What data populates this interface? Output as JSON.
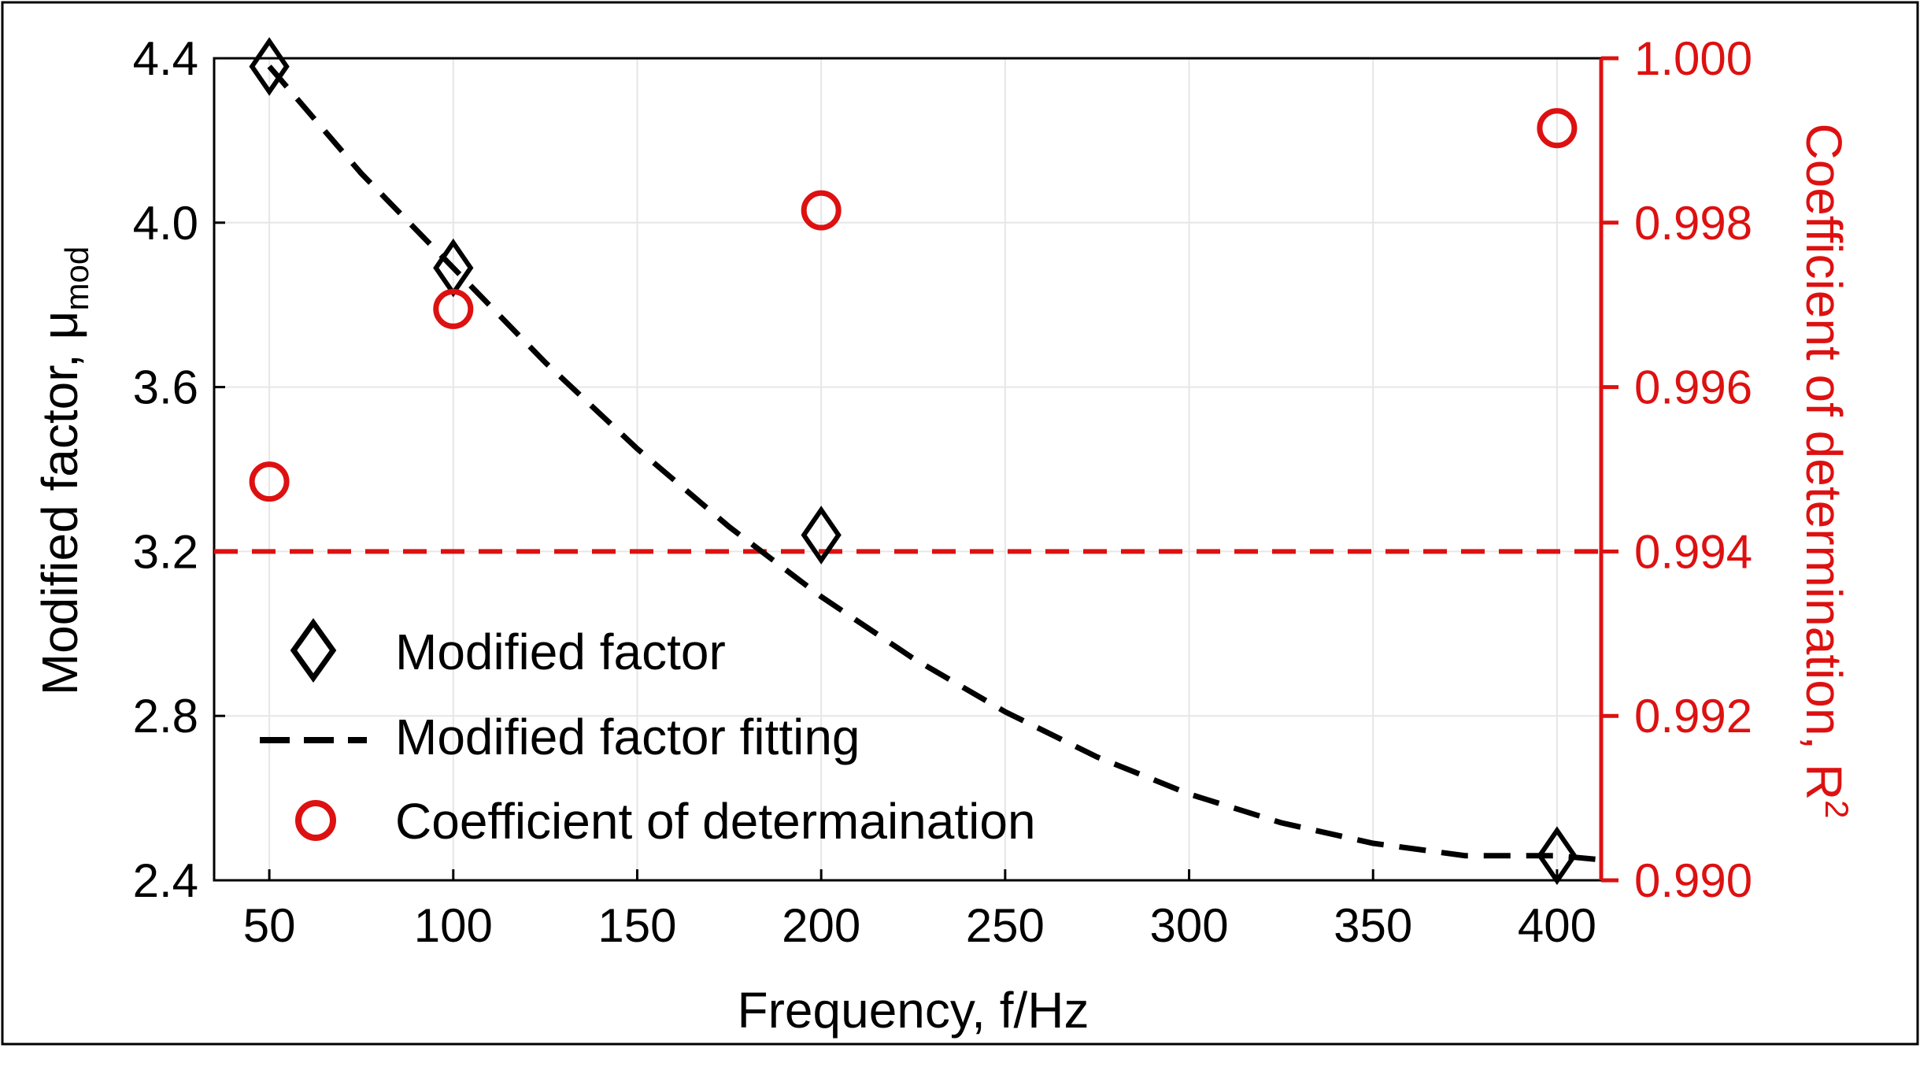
{
  "chart_data": {
    "type": "scatter",
    "xlabel": "Frequency, f/Hz",
    "ylabel_left": {
      "main": "Modified factor, μ",
      "subscript": "mod"
    },
    "ylabel_right": {
      "main": "Coefficient of determination, R",
      "superscript": "2"
    },
    "xlim": [
      35,
      412
    ],
    "ylim_left": [
      2.4,
      4.4
    ],
    "ylim_right": [
      0.99,
      1.0
    ],
    "x_ticks": [
      50,
      100,
      150,
      200,
      250,
      300,
      350,
      400
    ],
    "y_ticks_left": [
      2.4,
      2.8,
      3.2,
      3.6,
      4.0,
      4.4
    ],
    "y_ticks_right": [
      0.99,
      0.992,
      0.994,
      0.996,
      0.998,
      1.0
    ],
    "x_tick_labels": [
      "50",
      "100",
      "150",
      "200",
      "250",
      "300",
      "350",
      "400"
    ],
    "y_tick_labels_left": [
      "2.4",
      "2.8",
      "3.2",
      "3.6",
      "4.0",
      "4.4"
    ],
    "y_tick_labels_right": [
      "0.990",
      "0.992",
      "0.994",
      "0.996",
      "0.998",
      "1.000"
    ],
    "grid": true,
    "legend_position": "bottom-left",
    "series": [
      {
        "name": "Modified factor",
        "axis": "left",
        "kind": "scatter",
        "marker": "diamond",
        "color": "#000000",
        "x": [
          50,
          100,
          200,
          400
        ],
        "y": [
          4.38,
          3.89,
          3.24,
          2.46
        ]
      },
      {
        "name": "Modified factor fitting",
        "axis": "left",
        "kind": "line",
        "dash": true,
        "color": "#000000",
        "x": [
          50,
          75,
          100,
          125,
          150,
          175,
          200,
          225,
          250,
          275,
          300,
          325,
          350,
          375,
          400,
          412
        ],
        "y": [
          4.38,
          4.12,
          3.89,
          3.66,
          3.45,
          3.26,
          3.09,
          2.94,
          2.81,
          2.7,
          2.61,
          2.54,
          2.49,
          2.46,
          2.46,
          2.45
        ]
      },
      {
        "name": "Coefficient of determaination",
        "axis": "right",
        "kind": "scatter",
        "marker": "circle",
        "color": "#dd1111",
        "x": [
          50,
          100,
          200,
          400
        ],
        "y": [
          0.99485,
          0.99695,
          0.99815,
          0.99915
        ]
      }
    ],
    "reference_line": {
      "axis": "right",
      "y": 0.994,
      "color": "#dd1111",
      "dash": true
    }
  }
}
